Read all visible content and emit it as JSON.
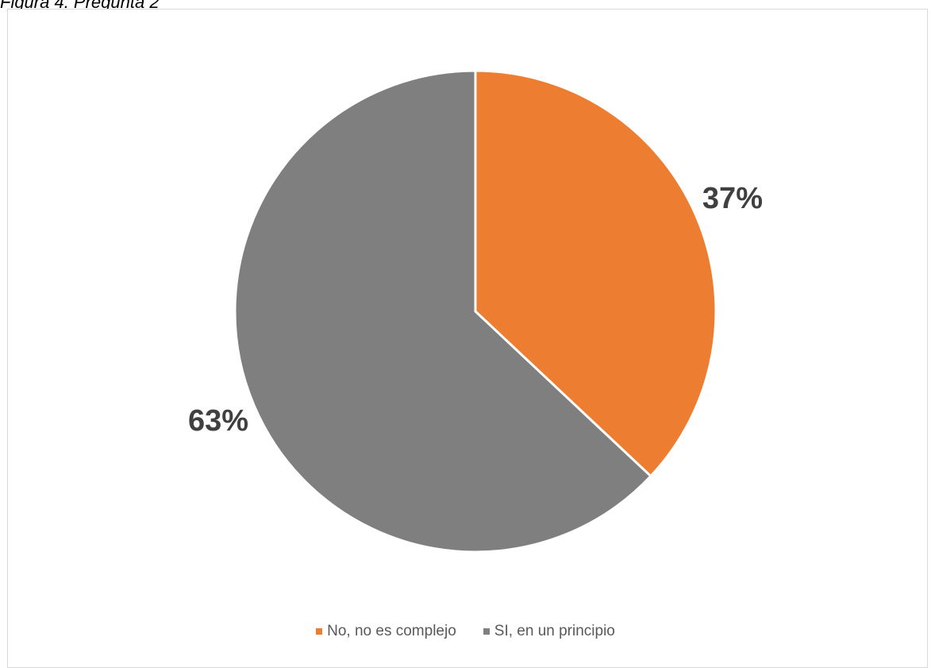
{
  "caption": "Figura 4. Pregunta 2",
  "chart_data": {
    "type": "pie",
    "title": "",
    "series": [
      {
        "categories": [
          "No, no es complejo",
          "SI, en un principio"
        ],
        "values": [
          37,
          63
        ],
        "labels": [
          "37%",
          "63%"
        ],
        "colors": [
          "#ED7D31",
          "#7F7F7F"
        ]
      }
    ],
    "start_angle_deg": 0,
    "direction": "clockwise",
    "legend": "bottom",
    "grid": false
  }
}
